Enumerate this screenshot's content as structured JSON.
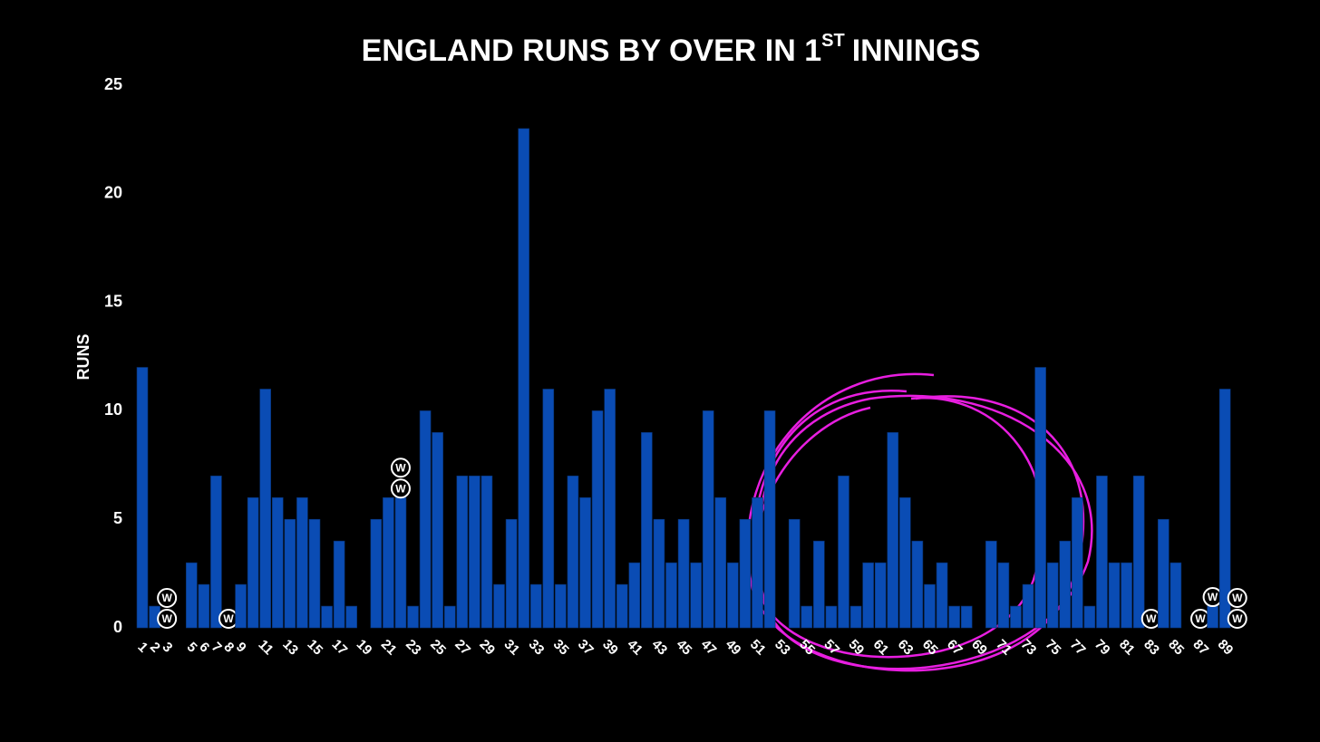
{
  "chart_data": {
    "type": "bar",
    "title": {
      "main": "ENGLAND RUNS BY OVER IN 1",
      "sup": "ST",
      "rest": "INNINGS"
    },
    "y_label": "RUNS",
    "categories": [
      "1",
      "2",
      "3",
      null,
      "5",
      "6",
      "7",
      "8",
      "9",
      null,
      "11",
      null,
      "13",
      null,
      "15",
      null,
      "17",
      null,
      "19",
      null,
      "21",
      null,
      "23",
      null,
      "25",
      null,
      "27",
      null,
      "29",
      null,
      "31",
      null,
      "33",
      null,
      "35",
      null,
      "37",
      null,
      "39",
      null,
      "41",
      null,
      "43",
      null,
      "45",
      null,
      "47",
      null,
      "49",
      null,
      "51",
      null,
      "53",
      null,
      "55",
      null,
      "57",
      null,
      "59",
      null,
      "61",
      null,
      "63",
      null,
      "65",
      null,
      "67",
      null,
      "69",
      null,
      "71",
      null,
      "73",
      null,
      "75",
      null,
      "77",
      null,
      "79",
      null,
      "81",
      null,
      "83",
      null,
      "85",
      null,
      "87",
      null,
      "89",
      null
    ],
    "values": [
      12,
      1,
      0,
      0,
      3,
      2,
      7,
      0,
      2,
      6,
      11,
      6,
      5,
      6,
      5,
      1,
      4,
      1,
      0,
      5,
      6,
      6,
      1,
      10,
      9,
      1,
      7,
      7,
      7,
      2,
      5,
      23,
      2,
      11,
      2,
      7,
      6,
      10,
      11,
      2,
      3,
      9,
      5,
      3,
      5,
      3,
      10,
      6,
      3,
      5,
      6,
      10,
      0,
      5,
      1,
      4,
      1,
      7,
      1,
      3,
      3,
      9,
      6,
      4,
      2,
      3,
      1,
      1,
      0,
      4,
      3,
      1,
      2,
      12,
      3,
      4,
      6,
      1,
      7,
      3,
      3,
      7,
      0,
      5,
      3,
      0,
      0,
      1,
      11,
      0
    ],
    "wicket_label": "W",
    "wickets": [
      0,
      0,
      2,
      0,
      0,
      0,
      0,
      1,
      0,
      0,
      0,
      0,
      0,
      0,
      0,
      0,
      0,
      0,
      0,
      0,
      0,
      2,
      0,
      0,
      0,
      0,
      0,
      0,
      0,
      0,
      0,
      0,
      0,
      0,
      0,
      0,
      0,
      0,
      0,
      0,
      0,
      0,
      0,
      0,
      0,
      0,
      0,
      0,
      0,
      0,
      0,
      0,
      0,
      0,
      0,
      0,
      0,
      0,
      0,
      0,
      0,
      0,
      0,
      0,
      0,
      0,
      0,
      0,
      0,
      0,
      0,
      0,
      0,
      0,
      0,
      0,
      0,
      0,
      0,
      0,
      0,
      0,
      1,
      0,
      0,
      0,
      1,
      1,
      0,
      2
    ],
    "color": "#0a4cb4",
    "ylim": [
      0,
      25
    ],
    "yticks": [
      0,
      5,
      10,
      15,
      20,
      25
    ],
    "grid": false
  }
}
